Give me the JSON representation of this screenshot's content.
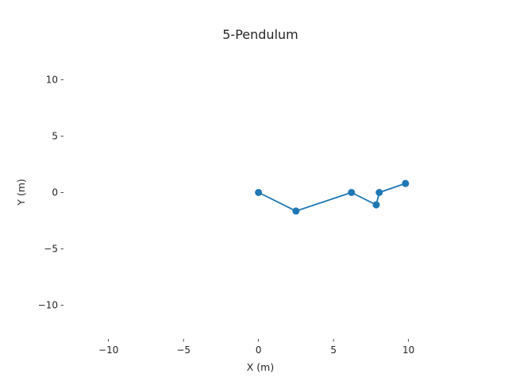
{
  "chart_data": {
    "type": "line",
    "title": "5-Pendulum",
    "xlabel": "X (m)",
    "ylabel": "Y (m)",
    "xlim": [
      -13.0,
      13.3
    ],
    "ylim": [
      -13.0,
      13.0
    ],
    "xticks": [
      -10,
      -5,
      0,
      5,
      10
    ],
    "yticks": [
      -10,
      -5,
      0,
      5,
      10
    ],
    "xtick_labels": [
      "−10",
      "−5",
      "0",
      "5",
      "10"
    ],
    "ytick_labels": [
      "−10",
      "−5",
      "0",
      "5",
      "10"
    ],
    "grid": false,
    "series": [
      {
        "color": "#1f77b4",
        "marker": "circle",
        "x": [
          0.0,
          2.5,
          6.2,
          7.85,
          8.05,
          9.8
        ],
        "y": [
          0.0,
          -1.65,
          0.0,
          -1.1,
          0.0,
          0.8
        ]
      }
    ]
  }
}
